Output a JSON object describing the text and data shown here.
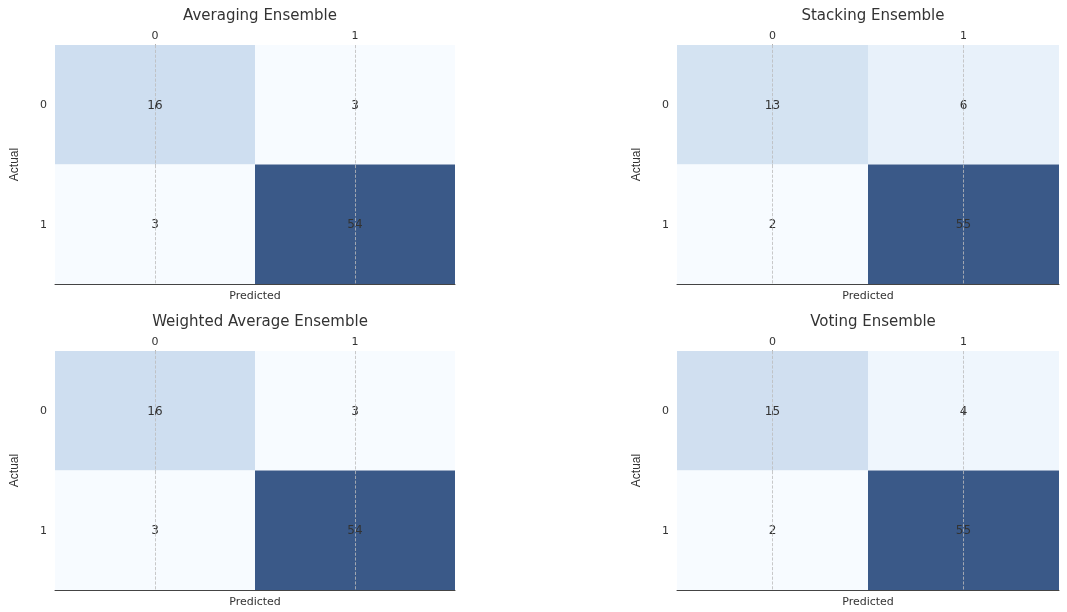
{
  "chart_data": [
    {
      "type": "heatmap",
      "title": "Averaging Ensemble",
      "xlabel": "Predicted",
      "ylabel": "Actual",
      "categories": [
        "0",
        "1"
      ],
      "y_categories": [
        "0",
        "1"
      ],
      "cells": [
        [
          16,
          3
        ],
        [
          3,
          54
        ]
      ],
      "data_labels": true,
      "grid": true
    },
    {
      "type": "heatmap",
      "title": "Stacking Ensemble",
      "xlabel": "Predicted",
      "ylabel": "Actual",
      "categories": [
        "0",
        "1"
      ],
      "y_categories": [
        "0",
        "1"
      ],
      "cells": [
        [
          13,
          6
        ],
        [
          2,
          55
        ]
      ],
      "data_labels": true,
      "grid": true
    },
    {
      "type": "heatmap",
      "title": "Weighted Average Ensemble",
      "xlabel": "Predicted",
      "ylabel": "Actual",
      "categories": [
        "0",
        "1"
      ],
      "y_categories": [
        "0",
        "1"
      ],
      "cells": [
        [
          16,
          3
        ],
        [
          3,
          54
        ]
      ],
      "data_labels": true,
      "grid": true
    },
    {
      "type": "heatmap",
      "title": "Voting Ensemble",
      "xlabel": "Predicted",
      "ylabel": "Actual",
      "categories": [
        "0",
        "1"
      ],
      "y_categories": [
        "0",
        "1"
      ],
      "cells": [
        [
          15,
          4
        ],
        [
          2,
          55
        ]
      ],
      "data_labels": true,
      "grid": true
    }
  ]
}
